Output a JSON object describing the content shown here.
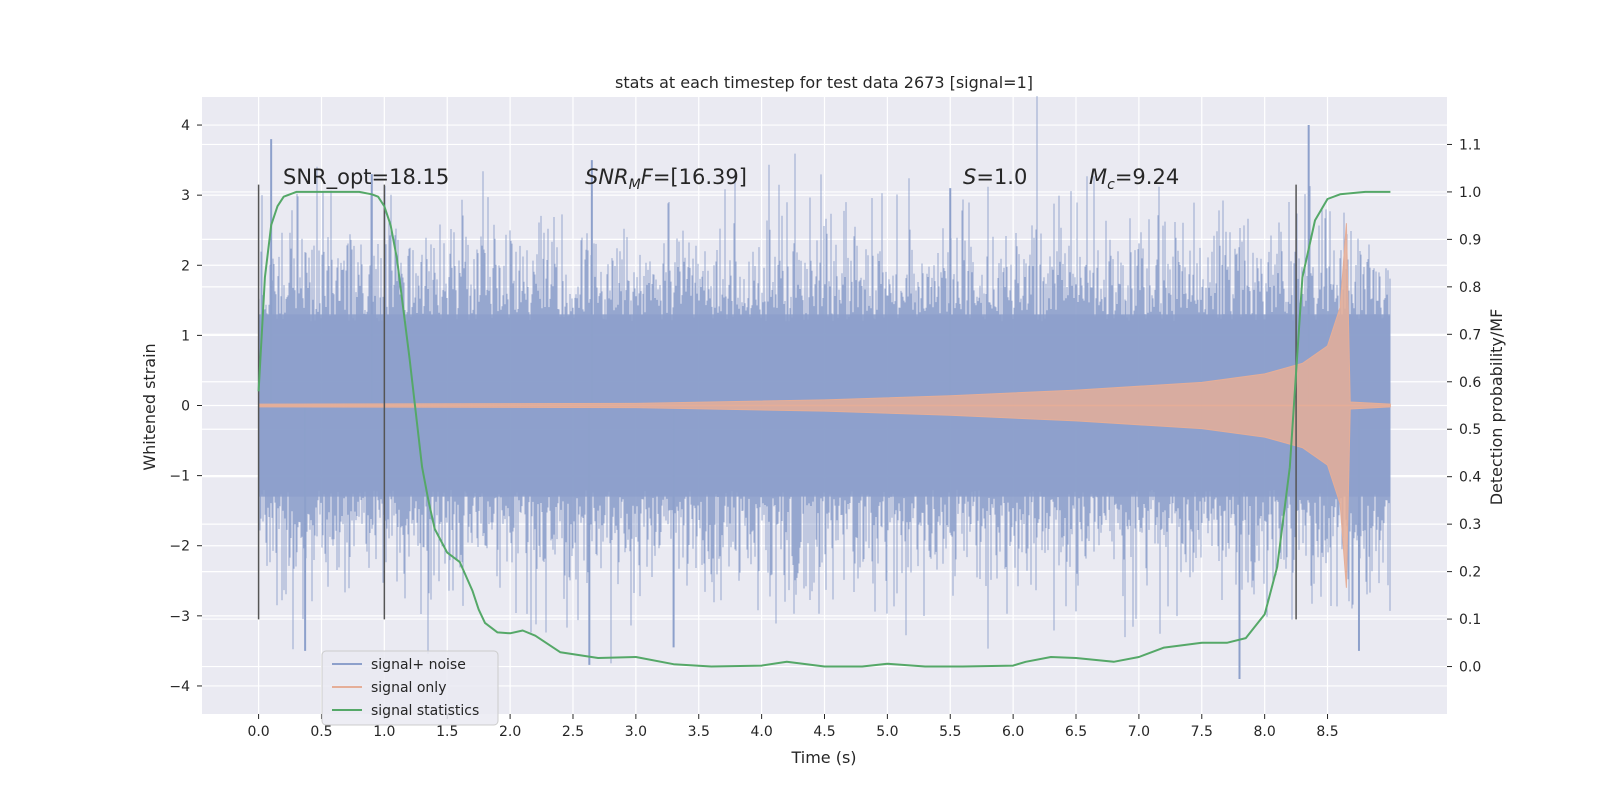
{
  "chart_data": {
    "type": "line",
    "title": "stats at each timestep for test data 2673 [signal=1]",
    "xlabel": "Time (s)",
    "ylabel": "Whitened strain",
    "ylabel_right": "Detection probability/MF",
    "xlim": [
      -0.45,
      9.45
    ],
    "ylim": [
      -4.4,
      4.4
    ],
    "ylim_right": [
      -0.1,
      1.2
    ],
    "x_ticks": [
      "0.0",
      "0.5",
      "1.0",
      "1.5",
      "2.0",
      "2.5",
      "3.0",
      "3.5",
      "4.0",
      "4.5",
      "5.0",
      "5.5",
      "6.0",
      "6.5",
      "7.0",
      "7.5",
      "8.0",
      "8.5"
    ],
    "x_tick_values": [
      0.0,
      0.5,
      1.0,
      1.5,
      2.0,
      2.5,
      3.0,
      3.5,
      4.0,
      4.5,
      5.0,
      5.5,
      6.0,
      6.5,
      7.0,
      7.5,
      8.0,
      8.5
    ],
    "y_ticks": [
      "4",
      "3",
      "2",
      "1",
      "0",
      "−1",
      "−2",
      "−3",
      "−4"
    ],
    "y_tick_values": [
      4,
      3,
      2,
      1,
      0,
      -1,
      -2,
      -3,
      -4
    ],
    "y2_ticks": [
      "1.1",
      "1.0",
      "0.9",
      "0.8",
      "0.7",
      "0.6",
      "0.5",
      "0.4",
      "0.3",
      "0.2",
      "0.1",
      "0.0"
    ],
    "y2_tick_values": [
      1.1,
      1.0,
      0.9,
      0.8,
      0.7,
      0.6,
      0.5,
      0.4,
      0.3,
      0.2,
      0.1,
      0.0
    ],
    "vertical_lines": [
      {
        "x": 0.0,
        "ymin": -3.05,
        "ymax": 3.15
      },
      {
        "x": 1.0,
        "ymin": -3.05,
        "ymax": 3.15
      },
      {
        "x": 8.25,
        "ymin": -3.05,
        "ymax": 3.15
      }
    ],
    "series": [
      {
        "name": "signal+ noise",
        "color": "#8da0cb",
        "note": "dense whitened noise; typical band ±1.3, peaks to ±3.5–4",
        "x_range": [
          0.0,
          9.0
        ],
        "peaks": [
          {
            "x": 0.1,
            "y": 3.8
          },
          {
            "x": 0.37,
            "y": -3.5
          },
          {
            "x": 0.9,
            "y": 3.3
          },
          {
            "x": 2.65,
            "y": 3.5
          },
          {
            "x": 2.63,
            "y": -3.7
          },
          {
            "x": 3.3,
            "y": -3.45
          },
          {
            "x": 5.5,
            "y": 3.1
          },
          {
            "x": 7.8,
            "y": -3.9
          },
          {
            "x": 8.35,
            "y": 4.0
          },
          {
            "x": 8.75,
            "y": -3.5
          }
        ]
      },
      {
        "name": "signal only",
        "color": "#e5ae98",
        "note": "chirp envelope growing toward merger near t=8.65",
        "envelope": {
          "x": [
            0.0,
            3.0,
            4.5,
            5.5,
            6.5,
            7.5,
            8.0,
            8.3,
            8.5,
            8.6,
            8.65,
            8.68,
            9.0
          ],
          "amp": [
            0.02,
            0.03,
            0.08,
            0.14,
            0.22,
            0.33,
            0.45,
            0.6,
            0.85,
            1.4,
            2.6,
            0.05,
            0.02
          ]
        }
      },
      {
        "name": "signal statistics",
        "color": "#55a868",
        "axis": "right",
        "x": [
          0.0,
          0.05,
          0.1,
          0.15,
          0.2,
          0.3,
          0.5,
          0.8,
          0.9,
          0.95,
          1.0,
          1.05,
          1.1,
          1.2,
          1.3,
          1.35,
          1.4,
          1.5,
          1.6,
          1.7,
          1.75,
          1.8,
          1.9,
          2.0,
          2.1,
          2.2,
          2.4,
          2.7,
          3.0,
          3.3,
          3.6,
          4.0,
          4.2,
          4.5,
          4.8,
          5.0,
          5.3,
          5.6,
          6.0,
          6.1,
          6.3,
          6.5,
          6.8,
          7.0,
          7.2,
          7.5,
          7.7,
          7.85,
          8.0,
          8.1,
          8.2,
          8.3,
          8.4,
          8.5,
          8.6,
          8.8,
          9.0
        ],
        "values": [
          0.58,
          0.82,
          0.93,
          0.97,
          0.99,
          1.0,
          1.0,
          1.0,
          0.995,
          0.99,
          0.97,
          0.93,
          0.86,
          0.65,
          0.42,
          0.35,
          0.29,
          0.24,
          0.22,
          0.16,
          0.12,
          0.092,
          0.072,
          0.07,
          0.076,
          0.065,
          0.03,
          0.018,
          0.02,
          0.005,
          0.0,
          0.002,
          0.01,
          0.0,
          0.0,
          0.006,
          0.0,
          0.0,
          0.002,
          0.01,
          0.02,
          0.018,
          0.01,
          0.02,
          0.04,
          0.05,
          0.05,
          0.06,
          0.11,
          0.21,
          0.42,
          0.82,
          0.94,
          0.985,
          0.995,
          1.0,
          1.0
        ]
      }
    ],
    "annotations": [
      {
        "text": "SNR_opt=18.15",
        "x": 0.2,
        "y": 3.2
      },
      {
        "text": "SNR_MF=[16.39]",
        "x": 2.6,
        "y": 3.2
      },
      {
        "text": "S=1.0",
        "x": 5.6,
        "y": 3.2
      },
      {
        "text": "M_c=9.24",
        "x": 6.6,
        "y": 3.2
      }
    ],
    "legend": {
      "position": "lower-left",
      "entries": [
        {
          "label": "signal+ noise",
          "color": "#8da0cb"
        },
        {
          "label": "signal only",
          "color": "#e5ae98"
        },
        {
          "label": "signal statistics",
          "color": "#55a868"
        }
      ]
    },
    "grid": true,
    "background": "#eaeaf2"
  },
  "annotation_text": {
    "snr_opt": "SNR_opt=18.15",
    "snr_mf_base": "SNR",
    "snr_mf_sub": "M",
    "snr_mf_tail": "F",
    "snr_mf_value": "=[16.39]",
    "s_symbol": "S",
    "s_value": "=1.0",
    "mc_symbol": "M",
    "mc_sub": "c",
    "mc_value": "=9.24"
  }
}
